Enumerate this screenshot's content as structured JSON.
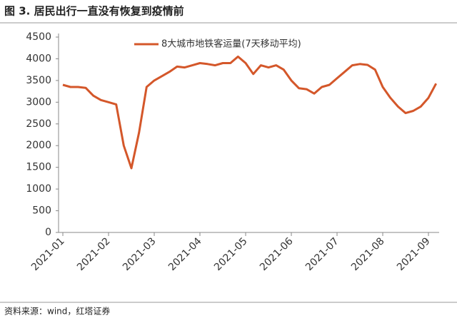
{
  "chart_data": {
    "type": "line",
    "title": "图 3. 居民出行一直没有恢复到疫情前",
    "source": "资料来源：wind，红塔证券",
    "categories": [
      "2021-01",
      null,
      null,
      null,
      null,
      null,
      "2021-02",
      null,
      null,
      null,
      null,
      null,
      "2021-03",
      null,
      null,
      null,
      null,
      null,
      "2021-04",
      null,
      null,
      null,
      null,
      null,
      "2021-05",
      null,
      null,
      null,
      null,
      null,
      "2021-06",
      null,
      null,
      null,
      null,
      null,
      "2021-07",
      null,
      null,
      null,
      null,
      null,
      "2021-08",
      null,
      null,
      null,
      null,
      null,
      "2021-09",
      null
    ],
    "series": [
      {
        "name": "8大城市地铁客运量(7天移动平均)",
        "color": "#d4572a",
        "values": [
          3400,
          3350,
          3350,
          3330,
          3150,
          3050,
          3000,
          2950,
          2000,
          1480,
          2300,
          3350,
          3500,
          3600,
          3700,
          3820,
          3800,
          3850,
          3900,
          3880,
          3850,
          3900,
          3900,
          4050,
          3900,
          3650,
          3850,
          3800,
          3850,
          3750,
          3500,
          3320,
          3300,
          3200,
          3350,
          3400,
          3550,
          3700,
          3850,
          3880,
          3860,
          3750,
          3350,
          3100,
          2900,
          2750,
          2800,
          2900,
          3100,
          3430
        ]
      }
    ],
    "ylim": [
      0,
      4500
    ],
    "yticks": [
      0,
      500,
      1000,
      1500,
      2000,
      2500,
      3000,
      3500,
      4000,
      4500
    ],
    "grid": false
  }
}
